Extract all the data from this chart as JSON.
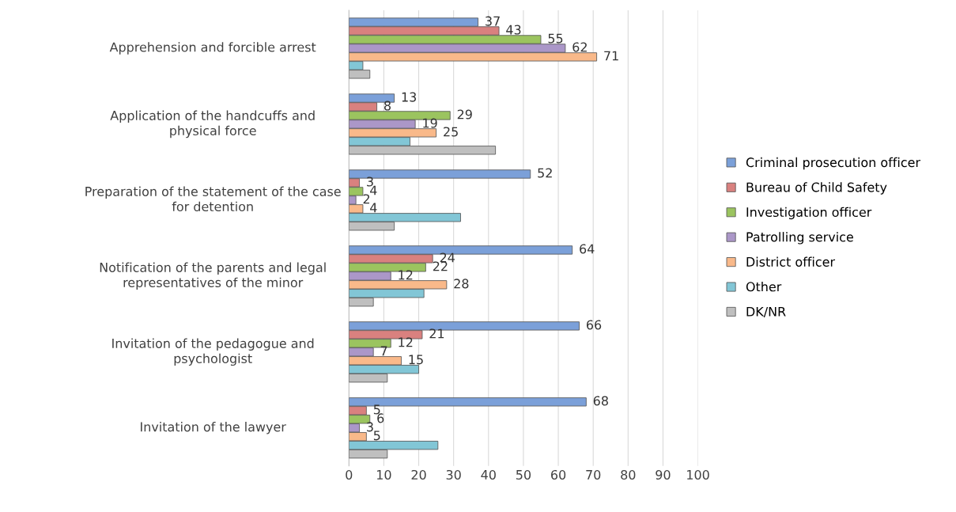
{
  "chart_data": {
    "type": "bar",
    "orientation": "horizontal",
    "categories": [
      "Apprehension and forcible arrest",
      "Application of the handcuffs and physical force",
      "Preparation of the statement of the case for detention",
      "Notification of the parents and legal representatives of the minor",
      "Invitation of the pedagogue and psychologist",
      "Invitation of the lawyer"
    ],
    "series": [
      {
        "name": "Criminal prosecution officer",
        "color": "#7ba0d9",
        "values": [
          37,
          13,
          52,
          64,
          66,
          68
        ],
        "value_labels": [
          "37",
          "13",
          "52",
          "64",
          "66",
          "68"
        ]
      },
      {
        "name": "Bureau of Child Safety",
        "color": "#d9817f",
        "values": [
          43,
          8,
          3,
          24,
          21,
          5
        ],
        "value_labels": [
          "43",
          "8",
          "3",
          "24",
          "21",
          "5"
        ]
      },
      {
        "name": "Investigation officer",
        "color": "#9bc45f",
        "values": [
          55,
          29,
          4,
          22,
          12,
          6
        ],
        "value_labels": [
          "55",
          "29",
          "4",
          "22",
          "12",
          "6"
        ]
      },
      {
        "name": "Patrolling service",
        "color": "#ab97c8",
        "values": [
          62,
          19,
          2,
          12,
          7,
          3
        ],
        "value_labels": [
          "62",
          "19",
          "2",
          "12",
          "7",
          "3"
        ]
      },
      {
        "name": "District officer",
        "color": "#f9b98a",
        "values": [
          71,
          25,
          4,
          28,
          15,
          5
        ],
        "value_labels": [
          "71",
          "25",
          "4",
          "28",
          "15",
          "5"
        ]
      },
      {
        "name": "Other",
        "color": "#82c6d6",
        "values": [
          4,
          17.5,
          32,
          21.5,
          20,
          25.5
        ]
      },
      {
        "name": "DK/NR",
        "color": "#bfbfbf",
        "values": [
          6,
          42,
          13,
          7,
          11,
          11
        ]
      }
    ],
    "xlim": [
      0,
      100
    ],
    "xticks": [
      0,
      10,
      20,
      30,
      40,
      50,
      60,
      70,
      80,
      90,
      100
    ],
    "grid": "x",
    "legend": "right"
  }
}
